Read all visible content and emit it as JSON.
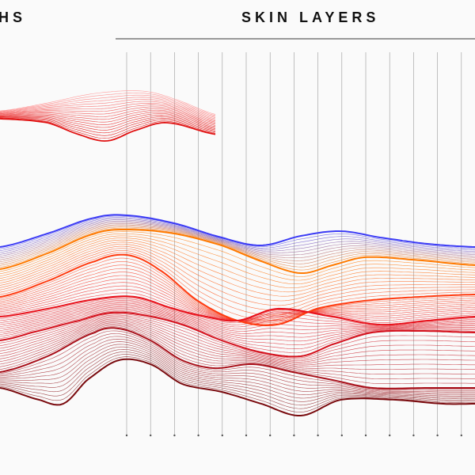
{
  "headings": {
    "left": "HS",
    "right": "SKIN LAYERS"
  },
  "colors": {
    "background": "#fafafa",
    "layer_curves": [
      "#3b3bf5",
      "#ff7a00",
      "#ff3b10",
      "#e8101a",
      "#d4101c",
      "#a8101a",
      "#7a0a0e"
    ],
    "upper_group": [
      "#ff9a9a",
      "#e01010"
    ],
    "axis": "#777777"
  },
  "axis_marker_count": 15
}
